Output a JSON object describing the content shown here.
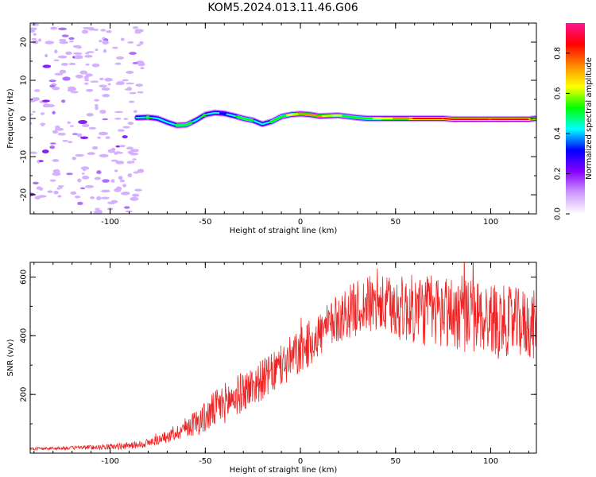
{
  "figure": {
    "title": "KOM5.2024.013.11.46.G06"
  },
  "chart_data": [
    {
      "type": "heatmap",
      "title": "",
      "xlabel": "Height of straight line (km)",
      "ylabel": "Frequency (Hz)",
      "xlim": [
        -142,
        124
      ],
      "ylim": [
        -25,
        25
      ],
      "xticks": [
        -100,
        -50,
        0,
        50,
        100
      ],
      "xtick_labels": [
        "-100",
        "-50",
        "0",
        "50",
        "100"
      ],
      "yticks": [
        -20,
        -10,
        0,
        10,
        20
      ],
      "ytick_labels": [
        "-20",
        "-10",
        "0",
        "10",
        "20"
      ],
      "noise_region": [
        -142,
        -83
      ],
      "trace": {
        "x": [
          -86,
          -80,
          -75,
          -70,
          -65,
          -60,
          -55,
          -50,
          -45,
          -40,
          -35,
          -30,
          -25,
          -20,
          -15,
          -10,
          -5,
          0,
          5,
          10,
          15,
          20,
          25,
          30,
          35,
          40,
          45,
          50,
          55,
          60,
          65,
          70,
          75,
          80,
          90,
          100,
          110,
          120,
          124
        ],
        "freq_hz": [
          0.2,
          0.3,
          0,
          -1,
          -1.8,
          -1.7,
          -0.5,
          1,
          1.5,
          1.3,
          0.7,
          0,
          -0.5,
          -1.5,
          -0.8,
          0.5,
          1,
          1.2,
          1,
          0.6,
          0.7,
          0.8,
          0.5,
          0.2,
          0,
          0,
          0,
          0,
          0,
          0,
          0,
          0,
          0,
          -0.2,
          -0.2,
          -0.2,
          -0.2,
          -0.2,
          0
        ],
        "amplitude": [
          0.4,
          0.5,
          0.45,
          0.4,
          0.5,
          0.55,
          0.45,
          0.5,
          0.4,
          0.35,
          0.45,
          0.55,
          0.5,
          0.4,
          0.5,
          0.55,
          0.6,
          0.7,
          0.75,
          0.7,
          0.65,
          0.6,
          0.55,
          0.5,
          0.55,
          0.6,
          0.65,
          0.7,
          0.75,
          0.8,
          0.85,
          0.85,
          0.9,
          0.85,
          0.85,
          0.9,
          0.85,
          0.8,
          0.6
        ]
      },
      "colorbar": {
        "label": "Normalized spectral amplitude",
        "range": [
          0,
          0.95
        ],
        "ticks": [
          0.0,
          0.2,
          0.4,
          0.6,
          0.8
        ],
        "tick_labels": [
          "0.0",
          "0.2",
          "0.4",
          "0.6",
          "0.8"
        ],
        "colors": [
          "#ffffff",
          "#cc99ff",
          "#8800ff",
          "#0000ff",
          "#00ffff",
          "#00ff00",
          "#ffff00",
          "#ff8800",
          "#ff0000",
          "#ff1493"
        ]
      }
    },
    {
      "type": "line",
      "title": "",
      "xlabel": "Height of straight line (km)",
      "ylabel": "SNR (v/v)",
      "xlim": [
        -142,
        124
      ],
      "ylim": [
        0,
        650
      ],
      "xticks": [
        -100,
        -50,
        0,
        50,
        100
      ],
      "xtick_labels": [
        "-100",
        "-50",
        "0",
        "50",
        "100"
      ],
      "yticks": [
        200,
        400,
        600
      ],
      "ytick_labels": [
        "200",
        "400",
        "600"
      ],
      "series": [
        {
          "color": "#ee2222",
          "x": [
            -142,
            -130,
            -120,
            -110,
            -100,
            -90,
            -80,
            -70,
            -65,
            -60,
            -55,
            -50,
            -45,
            -40,
            -35,
            -30,
            -25,
            -20,
            -15,
            -10,
            -5,
            0,
            5,
            10,
            15,
            20,
            25,
            30,
            35,
            40,
            45,
            50,
            55,
            60,
            65,
            70,
            75,
            80,
            85,
            90,
            95,
            100,
            105,
            110,
            115,
            120,
            124
          ],
          "y": [
            15,
            16,
            18,
            20,
            22,
            25,
            35,
            55,
            70,
            90,
            105,
            120,
            150,
            170,
            190,
            210,
            230,
            250,
            270,
            295,
            320,
            345,
            375,
            405,
            430,
            460,
            480,
            495,
            505,
            505,
            500,
            495,
            490,
            490,
            487,
            485,
            482,
            478,
            473,
            468,
            463,
            458,
            453,
            448,
            443,
            438,
            435
          ],
          "band": [
            5,
            5,
            6,
            8,
            10,
            12,
            15,
            20,
            25,
            35,
            45,
            55,
            65,
            70,
            70,
            70,
            70,
            70,
            70,
            75,
            80,
            80,
            80,
            80,
            80,
            85,
            90,
            95,
            100,
            100,
            105,
            110,
            115,
            120,
            125,
            130,
            130,
            130,
            130,
            130,
            125,
            125,
            120,
            120,
            120,
            120,
            120
          ]
        }
      ]
    }
  ]
}
